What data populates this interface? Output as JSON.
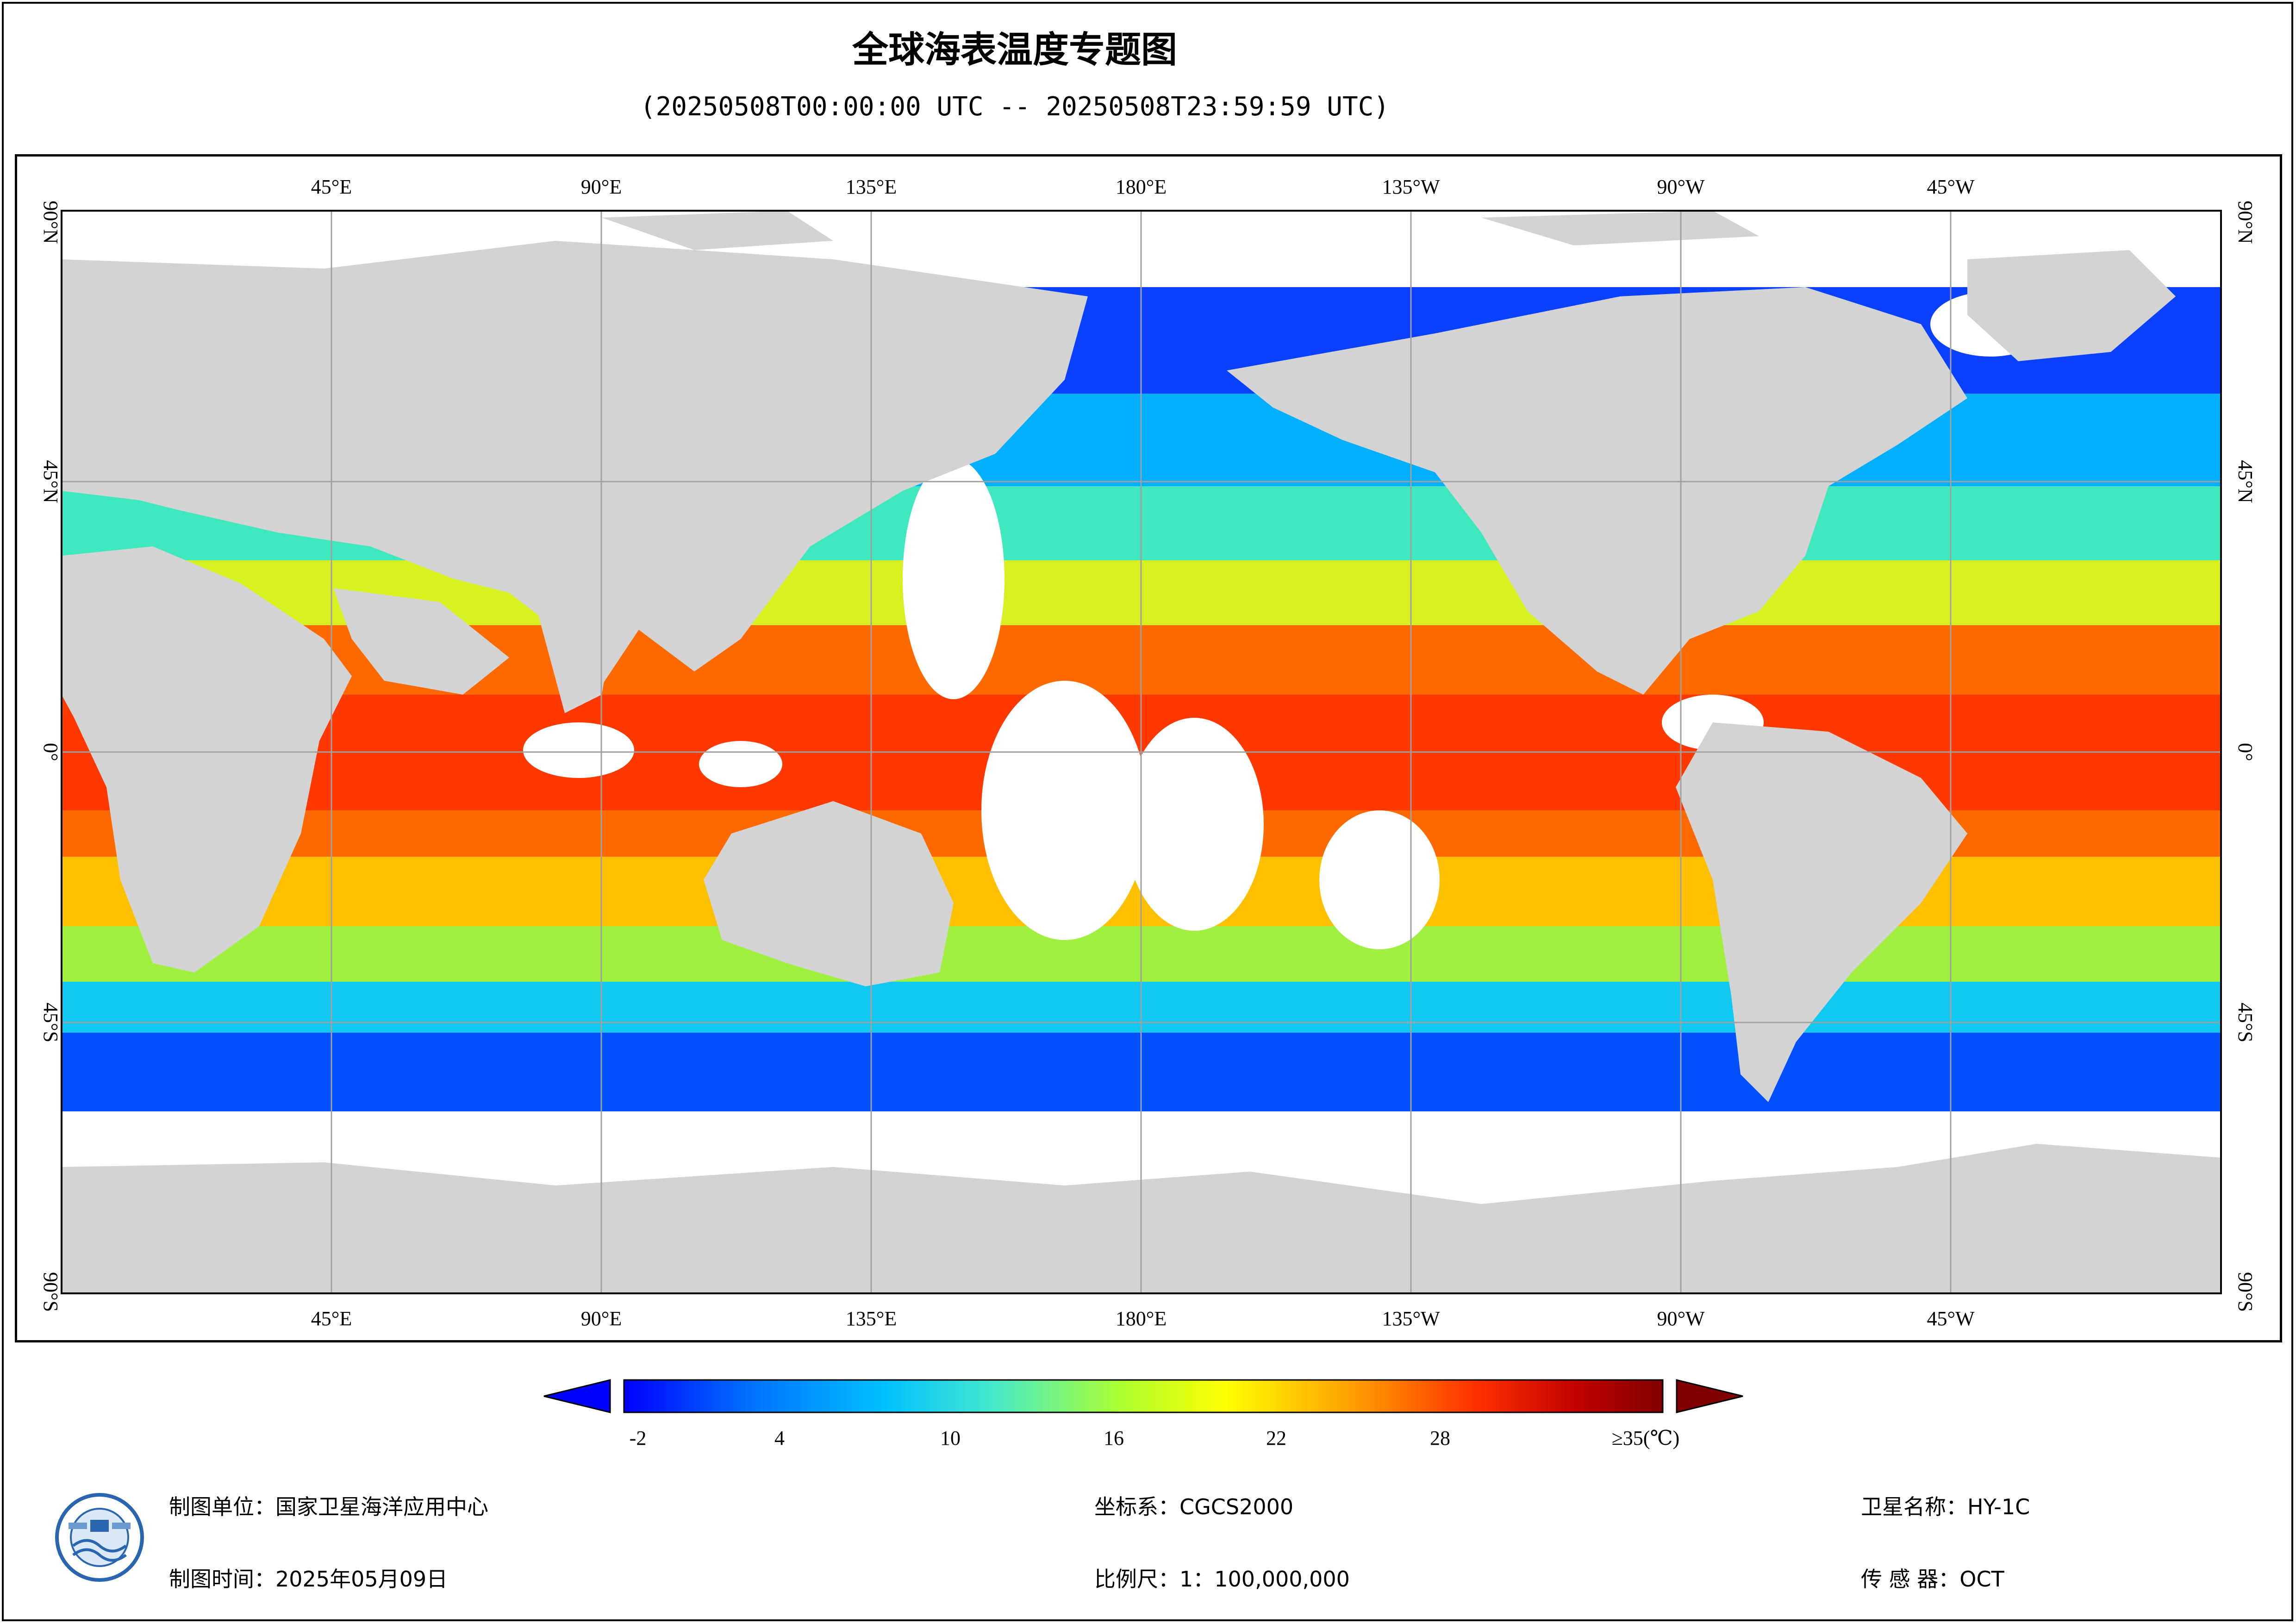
{
  "title": "全球海表温度专题图",
  "subtitle": "(20250508T00:00:00 UTC -- 20250508T23:59:59 UTC)",
  "map": {
    "top_lon_labels": [
      "45°E",
      "90°E",
      "135°E",
      "180°E",
      "135°W",
      "90°W",
      "45°W"
    ],
    "bottom_lon_labels": [
      "45°E",
      "90°E",
      "135°E",
      "180°E",
      "135°W",
      "90°W",
      "45°W"
    ],
    "left_lat_labels": [
      "90°N",
      "45°N",
      "0°",
      "45°S",
      "90°S"
    ],
    "right_lat_labels": [
      "90°N",
      "45°N",
      "0°",
      "45°S",
      "90°S"
    ],
    "colors": {
      "land": "#d3d3d3",
      "grid": "#a0a0a0",
      "nodata": "#ffffff"
    }
  },
  "colorbar": {
    "tick_labels": [
      "-2",
      "4",
      "10",
      "16",
      "22",
      "28",
      "≥35(℃)"
    ],
    "colors": [
      "#0000ff",
      "#00a0ff",
      "#40e0d0",
      "#adff2f",
      "#ffff00",
      "#ffa500",
      "#ff3000",
      "#b00000",
      "#800000"
    ]
  },
  "footer": {
    "unit": "制图单位：国家卫星海洋应用中心",
    "date": "制图时间：2025年05月09日",
    "crs": "坐标系：CGCS2000",
    "scale": "比例尺：1：100,000,000",
    "satellite": "卫星名称：HY-1C",
    "sensor": "传 感 器：OCT"
  },
  "logo": {
    "icon": "nsoas-logo-icon"
  }
}
